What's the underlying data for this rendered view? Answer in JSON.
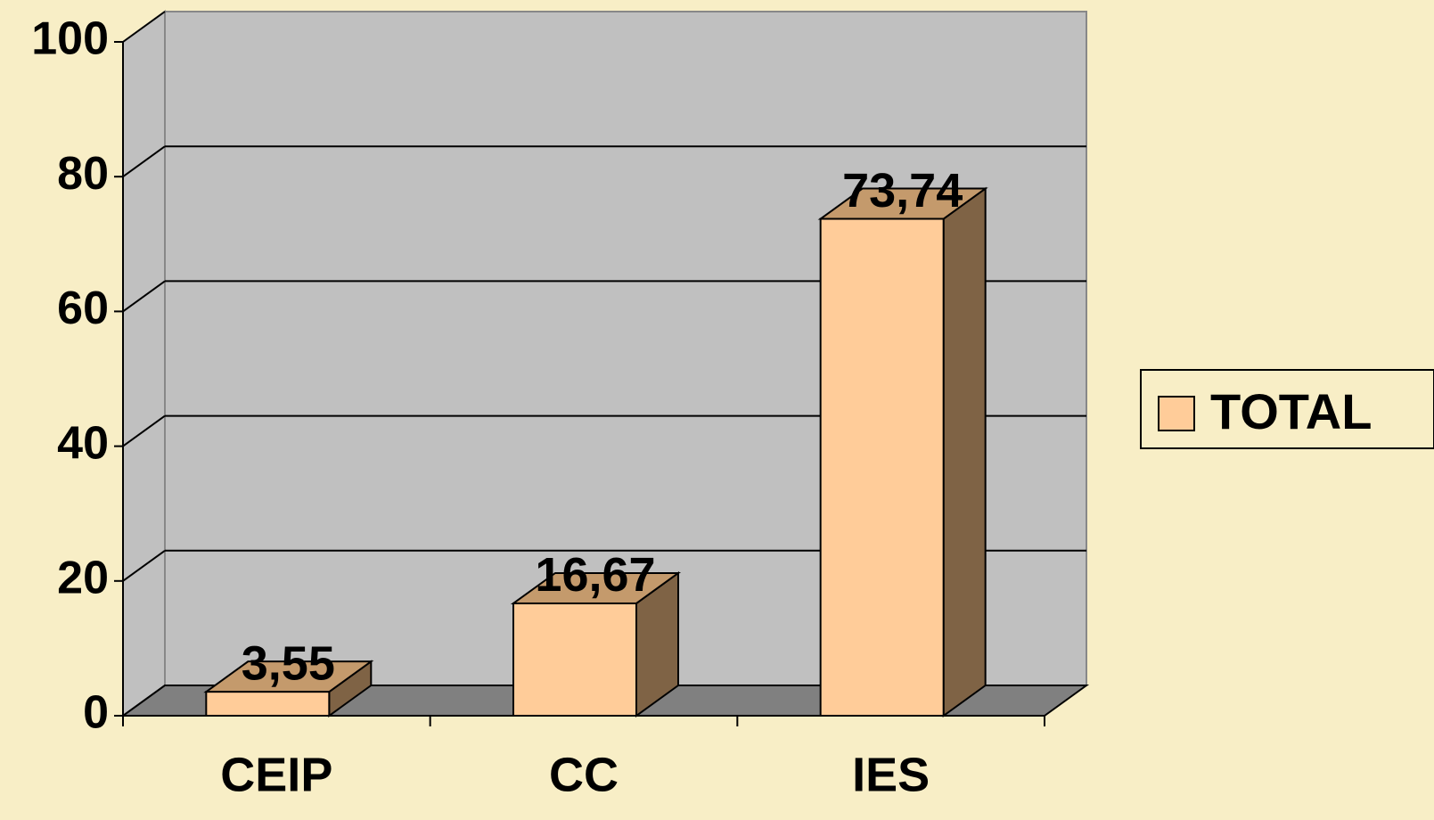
{
  "chart_data": {
    "type": "bar",
    "categories": [
      "CEIP",
      "CC",
      "IES"
    ],
    "series": [
      {
        "name": "TOTAL",
        "color": "#ffcc99",
        "values": [
          3.55,
          16.67,
          73.74
        ],
        "value_labels": [
          "3,55",
          "16,67",
          "73,74"
        ]
      }
    ],
    "ylim": [
      0,
      100
    ],
    "yticks": [
      0,
      20,
      40,
      60,
      80,
      100
    ],
    "grid": true,
    "legend": "right"
  }
}
